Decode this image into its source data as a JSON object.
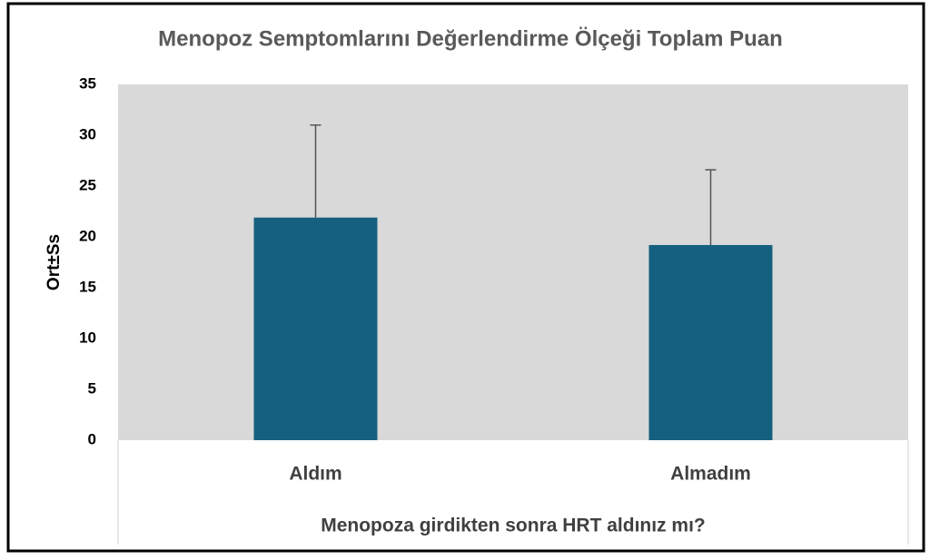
{
  "chart_data": {
    "type": "bar",
    "title": "Menopoz Semptomlarını Değerlendirme Ölçeği Toplam Puan",
    "x_label": "Menopoza girdikten sonra HRT aldınız mı?",
    "y_label": "Ort±Ss",
    "categories": [
      "Aldım",
      "Almadım"
    ],
    "values": [
      21.9,
      19.2
    ],
    "errors": [
      9.1,
      7.4
    ],
    "color": "#16607f",
    "ylim": [
      0,
      35
    ],
    "yticks": [
      0,
      5,
      10,
      15,
      20,
      25,
      30,
      35
    ],
    "grid": false
  }
}
